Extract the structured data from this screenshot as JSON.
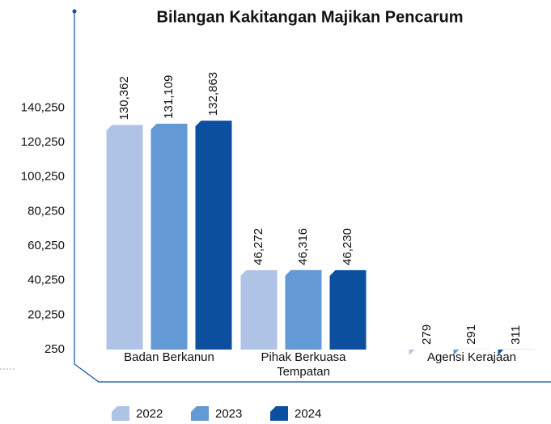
{
  "chart_data": {
    "type": "bar",
    "title": "Bilangan Kakitangan Majikan Pencarum",
    "categories": [
      "Badan Berkanun",
      "Pihak Berkuasa Tempatan",
      "Agensi Kerajaan"
    ],
    "series": [
      {
        "name": "2022",
        "color": "#aec3e6",
        "values": [
          130362,
          46272,
          279
        ],
        "value_labels": [
          "130,362",
          "46,272",
          "279"
        ]
      },
      {
        "name": "2023",
        "color": "#6399d4",
        "values": [
          131109,
          46316,
          291
        ],
        "value_labels": [
          "131,109",
          "46,316",
          "291"
        ]
      },
      {
        "name": "2024",
        "color": "#0b4f9e",
        "values": [
          132863,
          46230,
          311
        ],
        "value_labels": [
          "132,863",
          "46,230",
          "311"
        ]
      }
    ],
    "ylim": [
      250,
      150250
    ],
    "yticks": [
      {
        "value": 250,
        "label": "250"
      },
      {
        "value": 20250,
        "label": "20,250"
      },
      {
        "value": 40250,
        "label": "40,250"
      },
      {
        "value": 60250,
        "label": "60,250"
      },
      {
        "value": 80250,
        "label": "80,250"
      },
      {
        "value": 100250,
        "label": "100,250"
      },
      {
        "value": 120250,
        "label": "120,250"
      },
      {
        "value": 140250,
        "label": "140,250"
      }
    ],
    "grid": false,
    "legend": "bottom"
  }
}
